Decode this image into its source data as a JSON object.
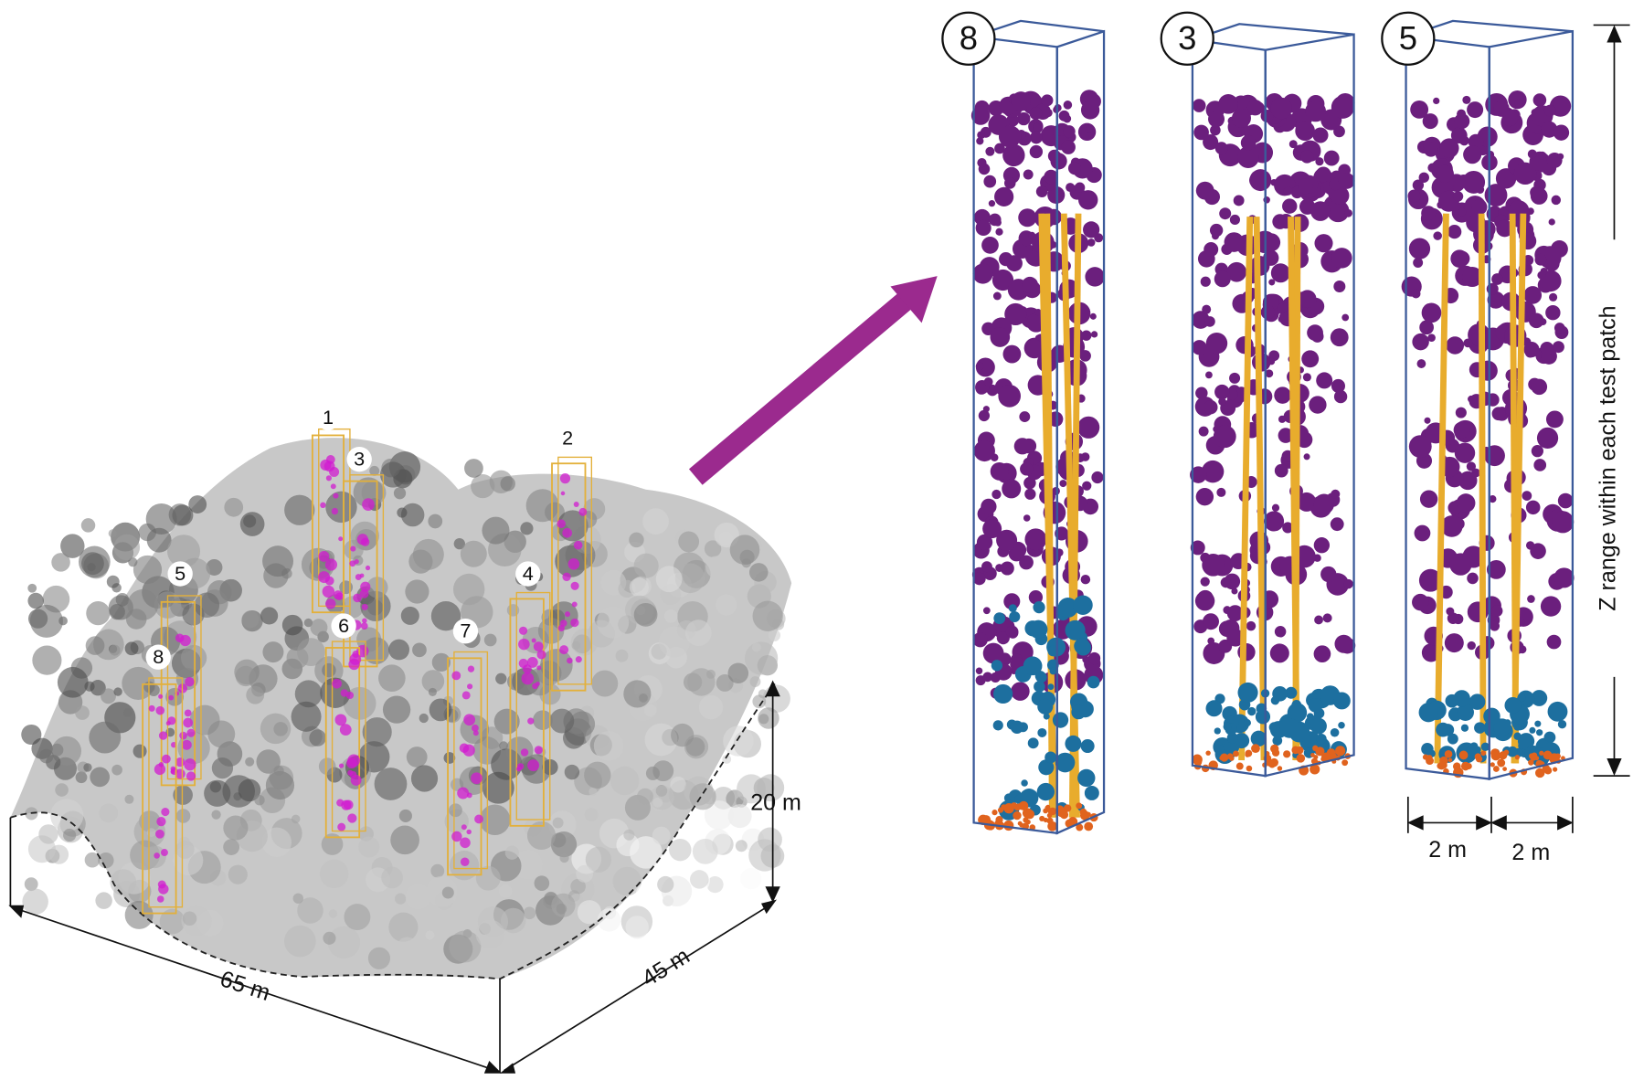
{
  "scene": {
    "patches": [
      "1",
      "2",
      "3",
      "4",
      "5",
      "6",
      "7",
      "8"
    ],
    "length": "65 m",
    "width": "45 m",
    "height": "20 m"
  },
  "detail": {
    "patches": [
      "8",
      "3",
      "5"
    ],
    "widths": [
      "2 m",
      "2 m"
    ],
    "z_label": "Z range within each test patch"
  }
}
